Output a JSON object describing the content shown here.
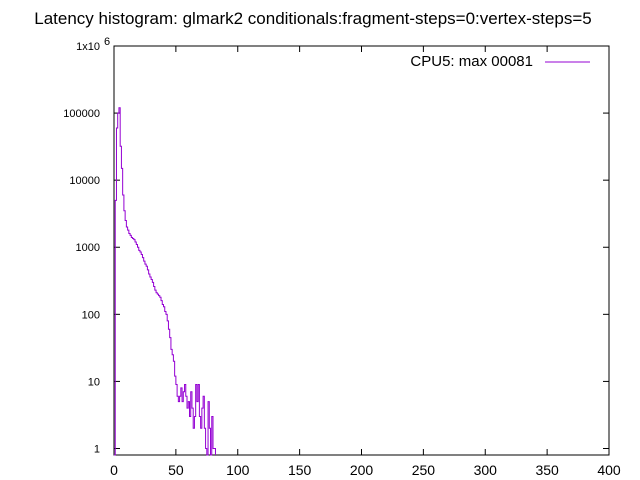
{
  "chart_data": {
    "type": "line",
    "title": "Latency histogram:  glmark2 conditionals:fragment-steps=0:vertex-steps=5",
    "xlabel": "",
    "ylabel": "",
    "xlim": [
      0,
      400
    ],
    "ylim": [
      0.8,
      1000000
    ],
    "yscale": "log",
    "x_ticks": [
      0,
      50,
      100,
      150,
      200,
      250,
      300,
      350,
      400
    ],
    "y_ticks": [
      {
        "value": 1,
        "label": "1"
      },
      {
        "value": 10,
        "label": "10"
      },
      {
        "value": 100,
        "label": "100"
      },
      {
        "value": 1000,
        "label": "1000"
      },
      {
        "value": 10000,
        "label": "10000"
      },
      {
        "value": 100000,
        "label": "100000"
      },
      {
        "value": 1000000,
        "label": "1x10"
      }
    ],
    "y_top_exponent": "6",
    "grid": false,
    "legend_position": "top-right",
    "series": [
      {
        "name": "CPU5: max 00081",
        "color": "#9400d3",
        "points": [
          [
            0,
            0.8
          ],
          [
            1,
            5000
          ],
          [
            2,
            60000
          ],
          [
            3,
            100000
          ],
          [
            4,
            120000
          ],
          [
            5,
            32000
          ],
          [
            6,
            15000
          ],
          [
            7,
            6000
          ],
          [
            8,
            3500
          ],
          [
            9,
            2500
          ],
          [
            10,
            2000
          ],
          [
            11,
            1800
          ],
          [
            12,
            1600
          ],
          [
            13,
            1500
          ],
          [
            14,
            1400
          ],
          [
            15,
            1350
          ],
          [
            16,
            1300
          ],
          [
            17,
            1200
          ],
          [
            18,
            1100
          ],
          [
            19,
            1000
          ],
          [
            20,
            900
          ],
          [
            21,
            850
          ],
          [
            22,
            780
          ],
          [
            23,
            700
          ],
          [
            24,
            620
          ],
          [
            25,
            560
          ],
          [
            26,
            520
          ],
          [
            27,
            460
          ],
          [
            28,
            400
          ],
          [
            29,
            360
          ],
          [
            30,
            330
          ],
          [
            31,
            300
          ],
          [
            32,
            260
          ],
          [
            33,
            230
          ],
          [
            34,
            210
          ],
          [
            35,
            200
          ],
          [
            36,
            190
          ],
          [
            37,
            180
          ],
          [
            38,
            160
          ],
          [
            39,
            140
          ],
          [
            40,
            130
          ],
          [
            41,
            110
          ],
          [
            42,
            100
          ],
          [
            43,
            80
          ],
          [
            44,
            60
          ],
          [
            45,
            45
          ],
          [
            46,
            30
          ],
          [
            47,
            25
          ],
          [
            48,
            20
          ],
          [
            49,
            12
          ],
          [
            50,
            9
          ],
          [
            51,
            6
          ],
          [
            52,
            5
          ],
          [
            53,
            6
          ],
          [
            54,
            8
          ],
          [
            55,
            5
          ],
          [
            56,
            7
          ],
          [
            57,
            9
          ],
          [
            58,
            6
          ],
          [
            59,
            4
          ],
          [
            60,
            5
          ],
          [
            61,
            3
          ],
          [
            62,
            7
          ],
          [
            63,
            4
          ],
          [
            64,
            2
          ],
          [
            65,
            3
          ],
          [
            66,
            9
          ],
          [
            67,
            5
          ],
          [
            68,
            9
          ],
          [
            69,
            3
          ],
          [
            70,
            2
          ],
          [
            71,
            4
          ],
          [
            72,
            6
          ],
          [
            73,
            2
          ],
          [
            74,
            1
          ],
          [
            75,
            0.8
          ],
          [
            76,
            5
          ],
          [
            77,
            2
          ],
          [
            78,
            0.8
          ],
          [
            79,
            3
          ],
          [
            80,
            1
          ],
          [
            81,
            1
          ],
          [
            82,
            0.8
          ]
        ]
      }
    ]
  }
}
